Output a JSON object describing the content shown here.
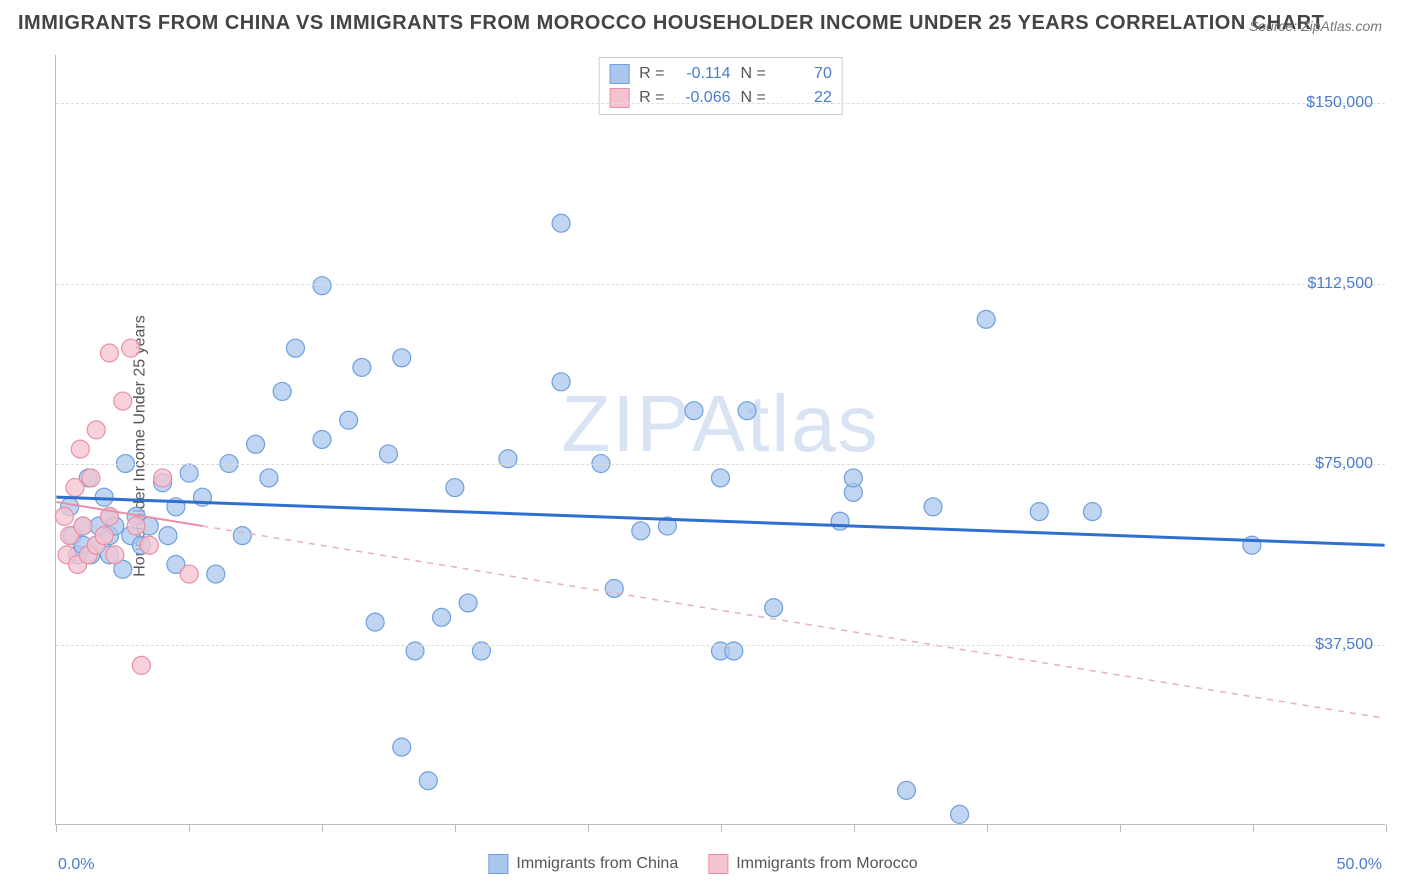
{
  "title": "IMMIGRANTS FROM CHINA VS IMMIGRANTS FROM MOROCCO HOUSEHOLDER INCOME UNDER 25 YEARS CORRELATION CHART",
  "source_label": "Source:",
  "source_value": "ZipAtlas.com",
  "watermark": "ZIPAtlas",
  "chart": {
    "type": "scatter",
    "ylabel": "Householder Income Under 25 years",
    "xlim": [
      0,
      50
    ],
    "ylim": [
      0,
      160000
    ],
    "x_unit": "%",
    "xtick_positions": [
      0,
      5,
      10,
      15,
      20,
      25,
      30,
      35,
      40,
      45,
      50
    ],
    "ytick_labels": [
      "$37,500",
      "$75,000",
      "$112,500",
      "$150,000"
    ],
    "ytick_values": [
      37500,
      75000,
      112500,
      150000
    ],
    "xaxis_label_left": "0.0%",
    "xaxis_label_right": "50.0%",
    "grid_color": "#dddddd",
    "background_color": "#ffffff",
    "marker_radius": 9,
    "marker_stroke_width": 1.2,
    "series": [
      {
        "name": "Immigrants from China",
        "fill_color": "#a9c7ec",
        "stroke_color": "#6fa0de",
        "line_color": "#2f6fd0",
        "line_width": 3,
        "line_dash": "none",
        "R": "-0.114",
        "N": "70",
        "trend": {
          "x1": 0,
          "y1": 68000,
          "x2": 50,
          "y2": 58000
        },
        "points": [
          [
            0.5,
            66000
          ],
          [
            0.6,
            60000
          ],
          [
            0.8,
            56000
          ],
          [
            1.0,
            58000
          ],
          [
            1.0,
            62000
          ],
          [
            1.2,
            72000
          ],
          [
            1.3,
            56000
          ],
          [
            1.5,
            58000
          ],
          [
            1.6,
            62000
          ],
          [
            1.8,
            68000
          ],
          [
            2.0,
            56000
          ],
          [
            2.0,
            60000
          ],
          [
            2.0,
            64000
          ],
          [
            2.2,
            62000
          ],
          [
            2.5,
            53000
          ],
          [
            2.6,
            75000
          ],
          [
            2.8,
            60000
          ],
          [
            3.0,
            64000
          ],
          [
            3.2,
            58000
          ],
          [
            3.5,
            62000
          ],
          [
            4.0,
            71000
          ],
          [
            4.2,
            60000
          ],
          [
            4.5,
            54000
          ],
          [
            4.5,
            66000
          ],
          [
            5.0,
            73000
          ],
          [
            5.5,
            68000
          ],
          [
            6.0,
            52000
          ],
          [
            6.5,
            75000
          ],
          [
            7.0,
            60000
          ],
          [
            7.5,
            79000
          ],
          [
            8.0,
            72000
          ],
          [
            8.5,
            90000
          ],
          [
            9.0,
            99000
          ],
          [
            10.0,
            80000
          ],
          [
            10.0,
            112000
          ],
          [
            11.0,
            84000
          ],
          [
            11.5,
            95000
          ],
          [
            12.0,
            42000
          ],
          [
            12.5,
            77000
          ],
          [
            13.0,
            16000
          ],
          [
            13.0,
            97000
          ],
          [
            13.5,
            36000
          ],
          [
            14.0,
            9000
          ],
          [
            14.5,
            43000
          ],
          [
            15.0,
            70000
          ],
          [
            15.5,
            46000
          ],
          [
            16.0,
            36000
          ],
          [
            17.0,
            76000
          ],
          [
            19.0,
            125000
          ],
          [
            19.0,
            92000
          ],
          [
            20.5,
            75000
          ],
          [
            21.0,
            49000
          ],
          [
            22.0,
            61000
          ],
          [
            23.0,
            62000
          ],
          [
            24.0,
            86000
          ],
          [
            25.0,
            36000
          ],
          [
            25.0,
            72000
          ],
          [
            25.5,
            36000
          ],
          [
            26.0,
            86000
          ],
          [
            27.0,
            45000
          ],
          [
            29.5,
            63000
          ],
          [
            30.0,
            69000
          ],
          [
            32.0,
            7000
          ],
          [
            33.0,
            66000
          ],
          [
            34.0,
            2000
          ],
          [
            35.0,
            105000
          ],
          [
            37.0,
            65000
          ],
          [
            39.0,
            65000
          ],
          [
            45.0,
            58000
          ],
          [
            30.0,
            72000
          ]
        ]
      },
      {
        "name": "Immigrants from Morocco",
        "fill_color": "#f5c3cf",
        "stroke_color": "#e98fa6",
        "line_color": "#e98fa6",
        "line_width": 2,
        "line_dash": "none",
        "dashed_ext_color": "#e9b0bb",
        "R": "-0.066",
        "N": "22",
        "trend": {
          "x1": 0,
          "y1": 67000,
          "x2": 5.5,
          "y2": 62000
        },
        "trend_ext": {
          "x1": 5.5,
          "y1": 62000,
          "x2": 50,
          "y2": 22000
        },
        "points": [
          [
            0.3,
            64000
          ],
          [
            0.4,
            56000
          ],
          [
            0.5,
            60000
          ],
          [
            0.7,
            70000
          ],
          [
            0.8,
            54000
          ],
          [
            0.9,
            78000
          ],
          [
            1.0,
            62000
          ],
          [
            1.2,
            56000
          ],
          [
            1.3,
            72000
          ],
          [
            1.5,
            58000
          ],
          [
            1.5,
            82000
          ],
          [
            1.8,
            60000
          ],
          [
            2.0,
            98000
          ],
          [
            2.0,
            64000
          ],
          [
            2.2,
            56000
          ],
          [
            2.5,
            88000
          ],
          [
            2.8,
            99000
          ],
          [
            3.0,
            62000
          ],
          [
            3.2,
            33000
          ],
          [
            3.5,
            58000
          ],
          [
            4.0,
            72000
          ],
          [
            5.0,
            52000
          ]
        ]
      }
    ],
    "legend_bottom": [
      {
        "label": "Immigrants from China",
        "fill": "#a9c7ec",
        "stroke": "#6fa0de"
      },
      {
        "label": "Immigrants from Morocco",
        "fill": "#f5c3cf",
        "stroke": "#e98fa6"
      }
    ],
    "legend_top_labels": {
      "R": "R =",
      "N": "N ="
    }
  }
}
